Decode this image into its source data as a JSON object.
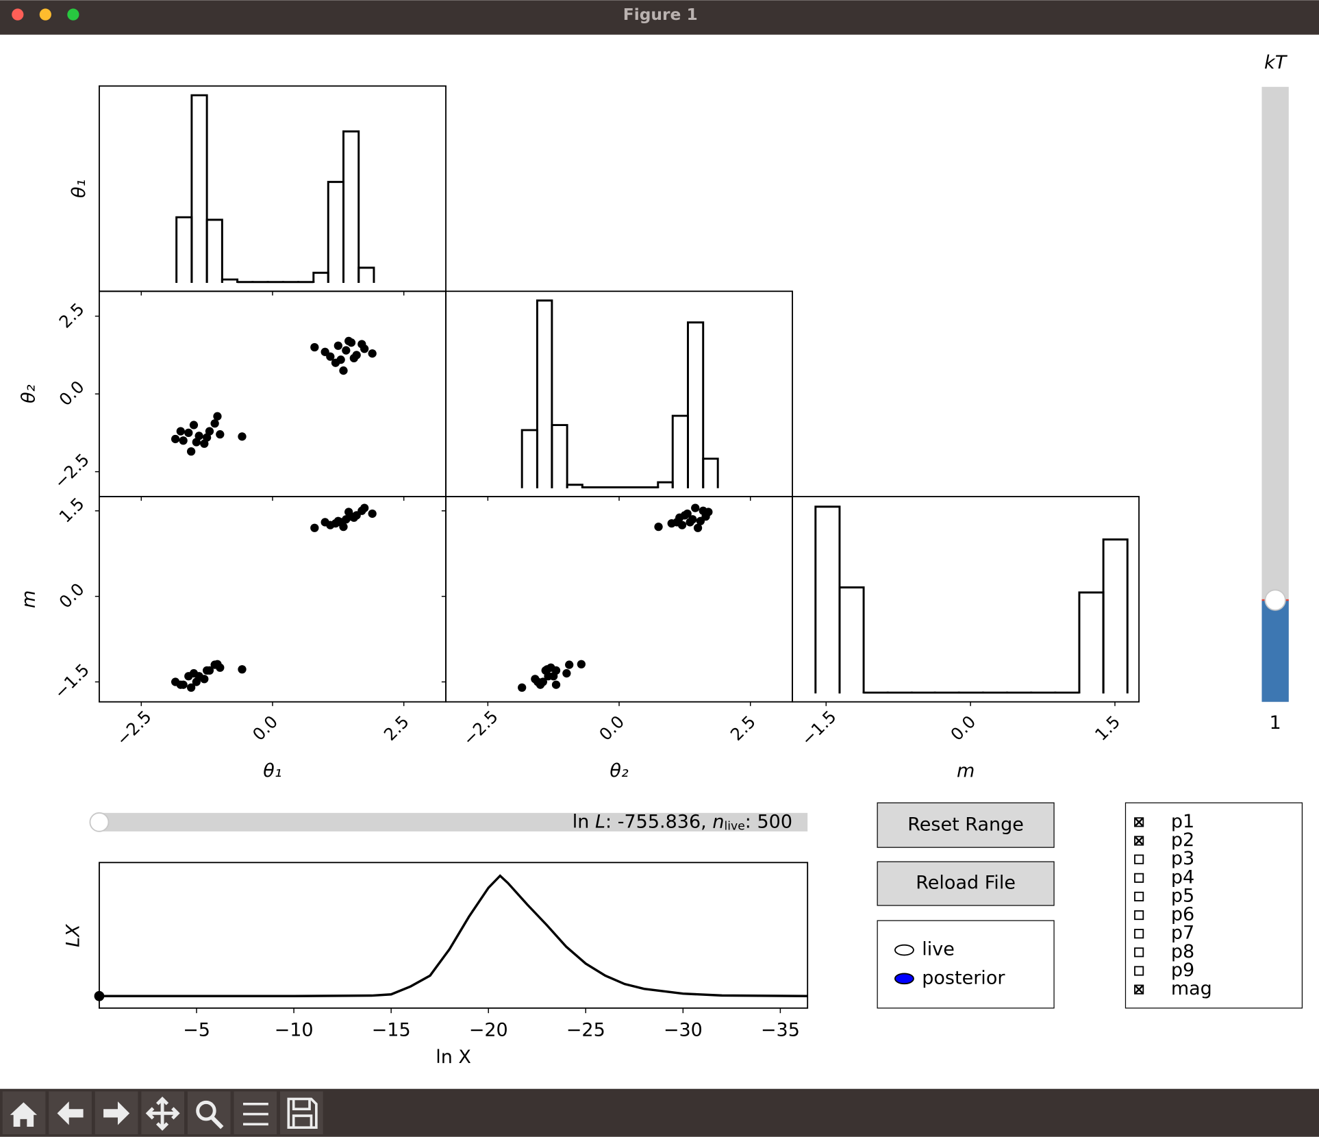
{
  "window": {
    "title": "Figure 1"
  },
  "corner": {
    "params": [
      {
        "label": "θ₁",
        "lim": [
          -3.3,
          3.3
        ],
        "ticks": [
          {
            "value": -2.5,
            "label": "−2.5"
          },
          {
            "value": 0,
            "label": "0.0"
          },
          {
            "value": 2.5,
            "label": "2.5"
          }
        ]
      },
      {
        "label": "θ₂",
        "lim": [
          -3.3,
          3.3
        ],
        "ticks": [
          {
            "value": -2.5,
            "label": "−2.5"
          },
          {
            "value": 0,
            "label": "0.0"
          },
          {
            "value": 2.5,
            "label": "2.5"
          }
        ]
      },
      {
        "label": "m",
        "lim": [
          -1.85,
          1.75
        ],
        "ticks": [
          {
            "value": -1.5,
            "label": "−1.5"
          },
          {
            "value": 0,
            "label": "0.0"
          },
          {
            "value": 1.5,
            "label": "1.5"
          }
        ]
      }
    ],
    "samples": [
      [
        -1.4,
        -1.7,
        -1.2,
        -1.5,
        -1.85,
        -1.0,
        -1.3,
        -1.6,
        -1.1,
        -1.45,
        -1.75,
        -1.25,
        -0.58,
        -1.55,
        -1.05,
        1.4,
        1.1,
        1.7,
        1.3,
        1.9,
        0.8,
        1.5,
        1.2,
        1.6,
        1.35,
        1.0,
        1.75,
        1.45,
        1.25,
        1.55
      ],
      [
        -1.35,
        -1.5,
        -1.2,
        -1.0,
        -1.45,
        -1.3,
        -1.6,
        -1.25,
        -0.95,
        -1.55,
        -1.2,
        -1.4,
        -1.37,
        -1.85,
        -0.72,
        1.4,
        1.2,
        1.6,
        1.1,
        1.3,
        1.5,
        1.65,
        1.0,
        1.25,
        0.75,
        1.35,
        1.45,
        1.7,
        1.55,
        1.15
      ],
      [
        -1.4,
        -1.55,
        -1.3,
        -1.35,
        -1.5,
        -1.25,
        -1.45,
        -1.4,
        -1.2,
        -1.5,
        -1.55,
        -1.3,
        -1.28,
        -1.6,
        -1.19,
        1.35,
        1.25,
        1.5,
        1.3,
        1.45,
        1.2,
        1.4,
        1.28,
        1.42,
        1.22,
        1.3,
        1.55,
        1.48,
        1.32,
        1.38
      ]
    ],
    "hists": [
      {
        "bins": [
          -1.83,
          -1.54,
          -1.25,
          -0.96,
          -0.67,
          -0.38,
          -0.09,
          0.2,
          0.49,
          0.78,
          1.06,
          1.35,
          1.64,
          1.93
        ],
        "counts": [
          78,
          223,
          75,
          4,
          1,
          1,
          1,
          1,
          1,
          12,
          120,
          180,
          18
        ]
      },
      {
        "bins": [
          -1.85,
          -1.56,
          -1.28,
          -0.99,
          -0.7,
          -0.41,
          -0.13,
          0.16,
          0.45,
          0.74,
          1.02,
          1.31,
          1.6,
          1.88
        ],
        "counts": [
          69,
          223,
          75,
          4,
          1,
          1,
          1,
          1,
          1,
          7,
          86,
          197,
          35
        ]
      },
      {
        "bins": [
          -1.61,
          -1.36,
          -1.11,
          -0.86,
          -0.61,
          -0.37,
          -0.12,
          0.13,
          0.38,
          0.63,
          0.88,
          1.13,
          1.38,
          1.63
        ],
        "counts": [
          222,
          126,
          1,
          1,
          1,
          1,
          1,
          1,
          1,
          1,
          1,
          120,
          183
        ]
      }
    ],
    "hist_ylim": [
      -10,
      234
    ],
    "color": "#000000"
  },
  "kT": {
    "label": "kT",
    "value_label": "1"
  },
  "slider": {
    "label_parts": [
      "ln ",
      "L",
      ": -755.836, ",
      "n",
      "live",
      ": 500"
    ]
  },
  "lx_plot": {
    "type": "line",
    "x": [
      0,
      -5,
      -10,
      -14,
      -15,
      -16,
      -17,
      -18,
      -19,
      -20,
      -20.6,
      -21,
      -22,
      -23,
      -24,
      -25,
      -26,
      -27,
      -28,
      -30,
      -32,
      -36.4
    ],
    "values": [
      0,
      0,
      0,
      0.004,
      0.014,
      0.08,
      0.17,
      0.39,
      0.66,
      0.9,
      1,
      0.94,
      0.76,
      0.59,
      0.41,
      0.27,
      0.17,
      0.1,
      0.06,
      0.02,
      0.005,
      0
    ],
    "xlim": [
      0,
      -36.4
    ],
    "ylim": [
      -0.1,
      1.11
    ],
    "xticks": [
      {
        "value": -5,
        "label": "−5"
      },
      {
        "value": -10,
        "label": "−10"
      },
      {
        "value": -15,
        "label": "−15"
      },
      {
        "value": -20,
        "label": "−20"
      },
      {
        "value": -25,
        "label": "−25"
      },
      {
        "value": -30,
        "label": "−30"
      },
      {
        "value": -35,
        "label": "−35"
      }
    ],
    "xlabel": "ln X",
    "ylabel": "LX",
    "marker": {
      "x": 0,
      "y": 0
    },
    "color": "#000000"
  },
  "buttons": [
    "Reset Range",
    "Reload File"
  ],
  "legend": [
    {
      "name": "live",
      "color": "#ffffff"
    },
    {
      "name": "posterior",
      "color": "#0000ff"
    }
  ],
  "checkboxes": [
    {
      "label": "p1",
      "checked": true
    },
    {
      "label": "p2",
      "checked": true
    },
    {
      "label": "p3",
      "checked": false
    },
    {
      "label": "p4",
      "checked": false
    },
    {
      "label": "p5",
      "checked": false
    },
    {
      "label": "p6",
      "checked": false
    },
    {
      "label": "p7",
      "checked": false
    },
    {
      "label": "p8",
      "checked": false
    },
    {
      "label": "p9",
      "checked": false
    },
    {
      "label": "mag",
      "checked": true
    }
  ]
}
